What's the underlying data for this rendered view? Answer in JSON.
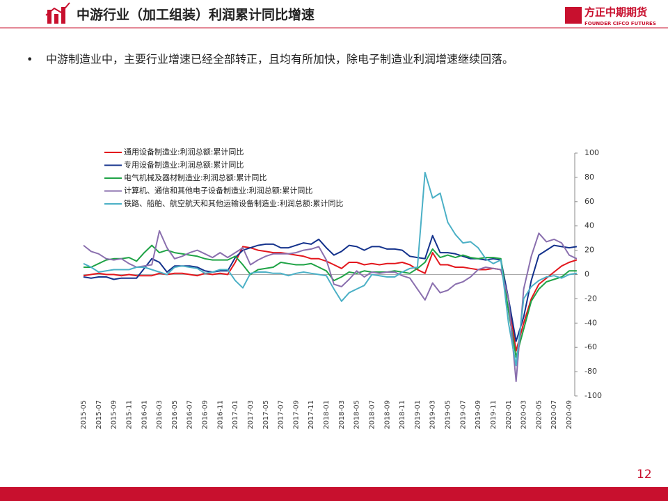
{
  "header": {
    "title": "中游行业（加工组装）利润累计同比增速",
    "logo": "方正中期期货",
    "logo_sub": "FOUNDER CIFCO FUTURES"
  },
  "bullet": "中游制造业中，主要行业增速已经全部转正，且均有所加快，除电子制造业利润增速继续回落。",
  "page_number": "12",
  "chart_data": {
    "type": "line",
    "categories": [
      "2015-05",
      null,
      "2015-07",
      null,
      "2015-09",
      null,
      "2015-11",
      null,
      "2016-01",
      null,
      "2016-03",
      null,
      "2016-05",
      null,
      "2016-07",
      null,
      "2016-09",
      null,
      "2016-11",
      null,
      "2017-01",
      null,
      "2017-03",
      null,
      "2017-05",
      null,
      "2017-07",
      null,
      "2017-09",
      null,
      "2017-11",
      null,
      "2018-01",
      null,
      "2018-03",
      null,
      "2018-05",
      null,
      "2018-07",
      null,
      "2018-09",
      null,
      "2018-11",
      null,
      "2019-01",
      null,
      "2019-03",
      null,
      "2019-05",
      null,
      "2019-07",
      null,
      "2019-09",
      null,
      "2019-11",
      null,
      "2020-01",
      null,
      "2020-03",
      null,
      "2020-05",
      null,
      "2020-07",
      null,
      "2020-09",
      null
    ],
    "series": [
      {
        "name": "通用设备制造业:利润总额:累计同比",
        "color": "#e3171d",
        "values": [
          -1,
          0,
          1,
          0,
          0,
          -1,
          0,
          -1,
          -1,
          -1,
          1,
          0,
          1,
          1,
          0,
          -1,
          1,
          0,
          1,
          0,
          10,
          23,
          22,
          20,
          19,
          18,
          18,
          17,
          16,
          15,
          13,
          13,
          11,
          8,
          5,
          10,
          10,
          8,
          9,
          8,
          9,
          9,
          10,
          8,
          4,
          1,
          18,
          8,
          8,
          6,
          6,
          5,
          4,
          4,
          5,
          4,
          -20,
          -63,
          -40,
          -20,
          -8,
          -3,
          2,
          7,
          10,
          12
        ]
      },
      {
        "name": "专用设备制造业:利润总额:累计同比",
        "color": "#14328c",
        "values": [
          -2,
          -3,
          -2,
          -2,
          -4,
          -3,
          -3,
          -3,
          5,
          13,
          10,
          2,
          7,
          7,
          7,
          6,
          3,
          2,
          3,
          3,
          14,
          20,
          22,
          24,
          25,
          25,
          22,
          22,
          24,
          26,
          25,
          29,
          22,
          16,
          19,
          24,
          23,
          20,
          23,
          23,
          21,
          21,
          20,
          15,
          14,
          13,
          32,
          18,
          18,
          17,
          15,
          13,
          13,
          12,
          13,
          12,
          -20,
          -55,
          -35,
          -5,
          16,
          20,
          24,
          23,
          22,
          23
        ]
      },
      {
        "name": "电气机械及器材制造业:利润总额:累计同比",
        "color": "#1fa346",
        "values": [
          6,
          6,
          9,
          12,
          13,
          13,
          14,
          11,
          18,
          24,
          18,
          20,
          18,
          17,
          16,
          15,
          13,
          12,
          12,
          12,
          15,
          8,
          0,
          4,
          5,
          6,
          10,
          9,
          8,
          8,
          9,
          6,
          3,
          -5,
          -2,
          2,
          1,
          3,
          2,
          2,
          2,
          3,
          2,
          1,
          5,
          10,
          21,
          14,
          16,
          14,
          16,
          14,
          13,
          14,
          14,
          13,
          -30,
          -68,
          -45,
          -22,
          -12,
          -6,
          -4,
          -2,
          3,
          3
        ]
      },
      {
        "name": "计算机、通信和其他电子设备制造业:利润总额:累计同比",
        "color": "#8a6fae",
        "values": [
          24,
          19,
          17,
          13,
          12,
          13,
          9,
          6,
          7,
          8,
          36,
          22,
          13,
          15,
          18,
          20,
          17,
          14,
          18,
          14,
          18,
          22,
          8,
          12,
          15,
          17,
          17,
          17,
          18,
          20,
          21,
          23,
          12,
          -8,
          -10,
          -4,
          3,
          -2,
          2,
          1,
          2,
          2,
          -1,
          -3,
          -12,
          -21,
          -7,
          -15,
          -13,
          -8,
          -6,
          -2,
          4,
          6,
          5,
          4,
          -20,
          -88,
          -12,
          15,
          34,
          27,
          29,
          26,
          16,
          13
        ]
      },
      {
        "name": "铁路、船舶、航空航天和其他运输设备制造业:利润总额:累计同比",
        "color": "#4bb0c6",
        "values": [
          9,
          6,
          2,
          3,
          4,
          4,
          4,
          6,
          6,
          4,
          2,
          0,
          6,
          7,
          6,
          5,
          1,
          2,
          4,
          4,
          -5,
          -11,
          1,
          2,
          2,
          1,
          1,
          -1,
          1,
          2,
          1,
          0,
          -1,
          -12,
          -22,
          -15,
          -12,
          -9,
          0,
          -1,
          -2,
          -2,
          2,
          5,
          6,
          84,
          63,
          67,
          43,
          33,
          26,
          27,
          22,
          13,
          9,
          12,
          -40,
          -75,
          -20,
          -10,
          -5,
          -2,
          -1,
          -3,
          0,
          1
        ]
      }
    ],
    "ylim": [
      -100,
      100
    ],
    "yticks": [
      -100,
      -80,
      -60,
      -40,
      -20,
      0,
      20,
      40,
      60,
      80,
      100
    ]
  }
}
